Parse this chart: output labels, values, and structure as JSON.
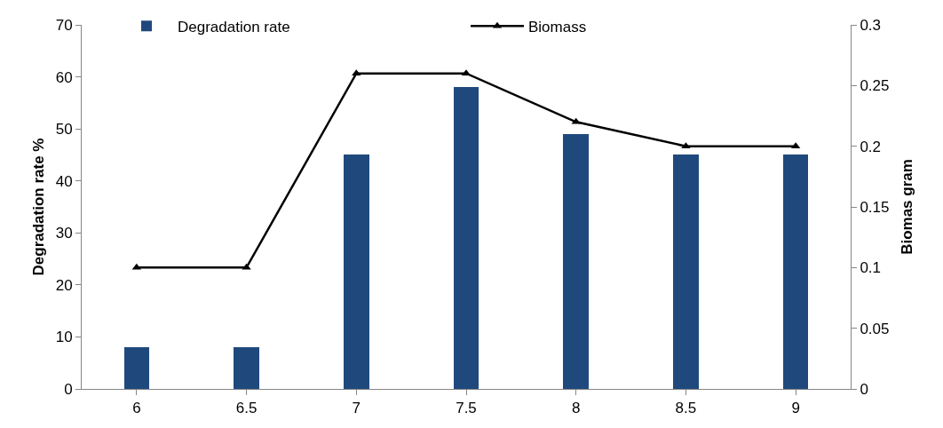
{
  "chart_data": {
    "type": "bar",
    "ylabel": "Degradation rate %",
    "y2label": "Biomas gram",
    "categories": [
      "6",
      "6.5",
      "7",
      "7.5",
      "8",
      "8.5",
      "9"
    ],
    "series": [
      {
        "name": "Degradation rate",
        "color": "#1f497d",
        "values": [
          8,
          8,
          45,
          58,
          49,
          45,
          45
        ]
      },
      {
        "name": "Biomass",
        "type": "line",
        "axis": "y2",
        "color": "#000000",
        "marker": "triangle",
        "line_style": "solid",
        "values": [
          0.1,
          0.1,
          0.26,
          0.26,
          0.22,
          0.2,
          0.2
        ]
      }
    ],
    "ylim": [
      0,
      70
    ],
    "yticks": [
      0,
      10,
      20,
      30,
      40,
      50,
      60,
      70
    ],
    "y2lim": [
      0,
      0.3
    ],
    "y2ticks": [
      0,
      0.05,
      0.1,
      0.15,
      0.2,
      0.25,
      0.3
    ],
    "grid": false,
    "legend": "top"
  }
}
